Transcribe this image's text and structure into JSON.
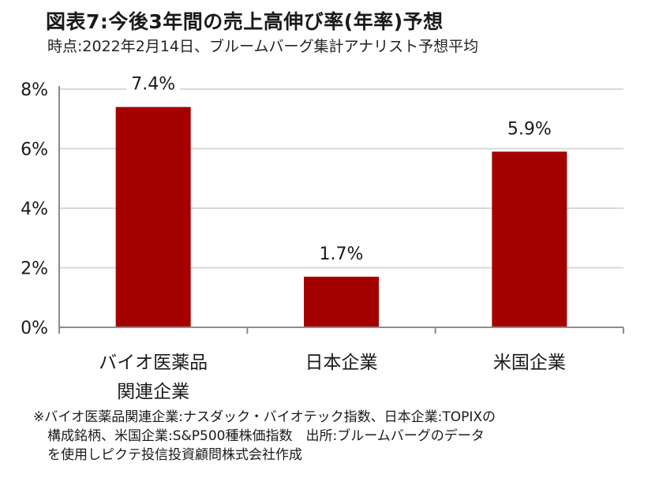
{
  "title": "図表7:今後3年間の売上高伸び率(年率)予想",
  "subtitle": "時点:2022年2月14日、ブルームバーグ集計アナリスト予想平均",
  "chart_data": {
    "type": "bar",
    "categories": [
      [
        "バイオ医薬品",
        "関連企業"
      ],
      [
        "日本企業"
      ],
      [
        "米国企業"
      ]
    ],
    "values": [
      7.4,
      1.7,
      5.9
    ],
    "data_labels": [
      "7.4%",
      "1.7%",
      "5.9%"
    ],
    "ylim": [
      0,
      8
    ],
    "yticks": [
      0,
      2,
      4,
      6,
      8
    ],
    "ytick_labels": [
      "0%",
      "2%",
      "4%",
      "6%",
      "8%"
    ],
    "grid": true,
    "bar_color": "#a50000",
    "grid_color": "#d9d9d9",
    "axis_color": "#8c8c8c"
  },
  "footnote": [
    "※バイオ医薬品関連企業:ナスダック・バイオテック指数、日本企業:TOPIXの",
    "構成銘柄、米国企業:S&P500種株価指数　出所:ブルームバーグのデータ",
    "を使用しピクテ投信投資顧問株式会社作成"
  ]
}
